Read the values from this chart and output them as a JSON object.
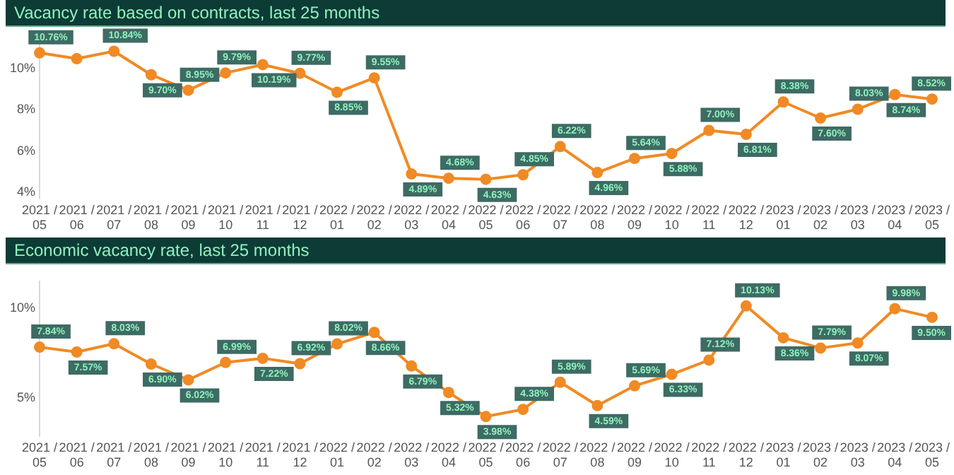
{
  "chart_data": [
    {
      "type": "line",
      "title": "Vacancy rate based on contracts, last 25 months",
      "categories": [
        "2021 / 05",
        "2021 / 06",
        "2021 / 07",
        "2021 / 08",
        "2021 / 09",
        "2021 / 10",
        "2021 / 11",
        "2021 / 12",
        "2022 / 01",
        "2022 / 02",
        "2022 / 03",
        "2022 / 04",
        "2022 / 05",
        "2022 / 06",
        "2022 / 07",
        "2022 / 08",
        "2022 / 09",
        "2022 / 10",
        "2022 / 11",
        "2022 / 12",
        "2023 / 01",
        "2023 / 02",
        "2023 / 03",
        "2023 / 04",
        "2023 / 05"
      ],
      "series": [
        {
          "color": "#f08a24",
          "values": [
            10.76,
            10.48,
            10.84,
            9.7,
            8.95,
            9.79,
            10.19,
            9.77,
            8.85,
            9.55,
            4.89,
            4.68,
            4.63,
            4.85,
            6.22,
            4.96,
            5.64,
            5.88,
            7.0,
            6.81,
            8.38,
            7.6,
            8.03,
            8.74,
            8.52
          ],
          "value_labels": [
            "10.76%",
            null,
            "10.84%",
            "9.70%",
            "8.95%",
            "9.79%",
            "10.19%",
            "9.77%",
            "8.85%",
            "9.55%",
            "4.89%",
            "4.68%",
            "4.63%",
            "4.85%",
            "6.22%",
            "4.96%",
            "5.64%",
            "5.88%",
            "7.00%",
            "6.81%",
            "8.38%",
            "7.60%",
            "8.03%",
            "8.74%",
            "8.52%"
          ]
        }
      ],
      "ylim": [
        3.7,
        11.2
      ],
      "yticks": [
        {
          "value": 4,
          "label": "4%"
        },
        {
          "value": 6,
          "label": "6%"
        },
        {
          "value": 8,
          "label": "8%"
        },
        {
          "value": 10,
          "label": "10%"
        }
      ],
      "grid": false,
      "legend": false,
      "marker": "circle",
      "line_style": "solid"
    },
    {
      "type": "line",
      "title": "Economic vacancy rate, last 25 months",
      "categories": [
        "2021 / 05",
        "2021 / 06",
        "2021 / 07",
        "2021 / 08",
        "2021 / 09",
        "2021 / 10",
        "2021 / 11",
        "2021 / 12",
        "2022 / 01",
        "2022 / 02",
        "2022 / 03",
        "2022 / 04",
        "2022 / 05",
        "2022 / 06",
        "2022 / 07",
        "2022 / 08",
        "2022 / 09",
        "2022 / 10",
        "2022 / 11",
        "2022 / 12",
        "2023 / 01",
        "2023 / 02",
        "2023 / 03",
        "2023 / 04",
        "2023 / 05"
      ],
      "series": [
        {
          "color": "#f08a24",
          "values": [
            7.84,
            7.57,
            8.03,
            6.9,
            6.02,
            6.99,
            7.22,
            6.92,
            8.02,
            8.66,
            6.79,
            5.32,
            3.98,
            4.38,
            5.89,
            4.59,
            5.69,
            6.33,
            7.12,
            10.13,
            8.36,
            7.79,
            8.07,
            9.98,
            9.5
          ],
          "value_labels": [
            "7.84%",
            "7.57%",
            "8.03%",
            "6.90%",
            "6.02%",
            "6.99%",
            "7.22%",
            "6.92%",
            "8.02%",
            "8.66%",
            "6.79%",
            "5.32%",
            "3.98%",
            "4.38%",
            "5.89%",
            "4.59%",
            "5.69%",
            "6.33%",
            "7.12%",
            "10.13%",
            "8.36%",
            "7.79%",
            "8.07%",
            "9.98%",
            "9.50%"
          ]
        }
      ],
      "ylim": [
        2.9,
        11.5
      ],
      "yticks": [
        {
          "value": 5,
          "label": "5%"
        },
        {
          "value": 10,
          "label": "10%"
        }
      ],
      "grid": false,
      "legend": false,
      "marker": "circle",
      "line_style": "solid"
    }
  ]
}
